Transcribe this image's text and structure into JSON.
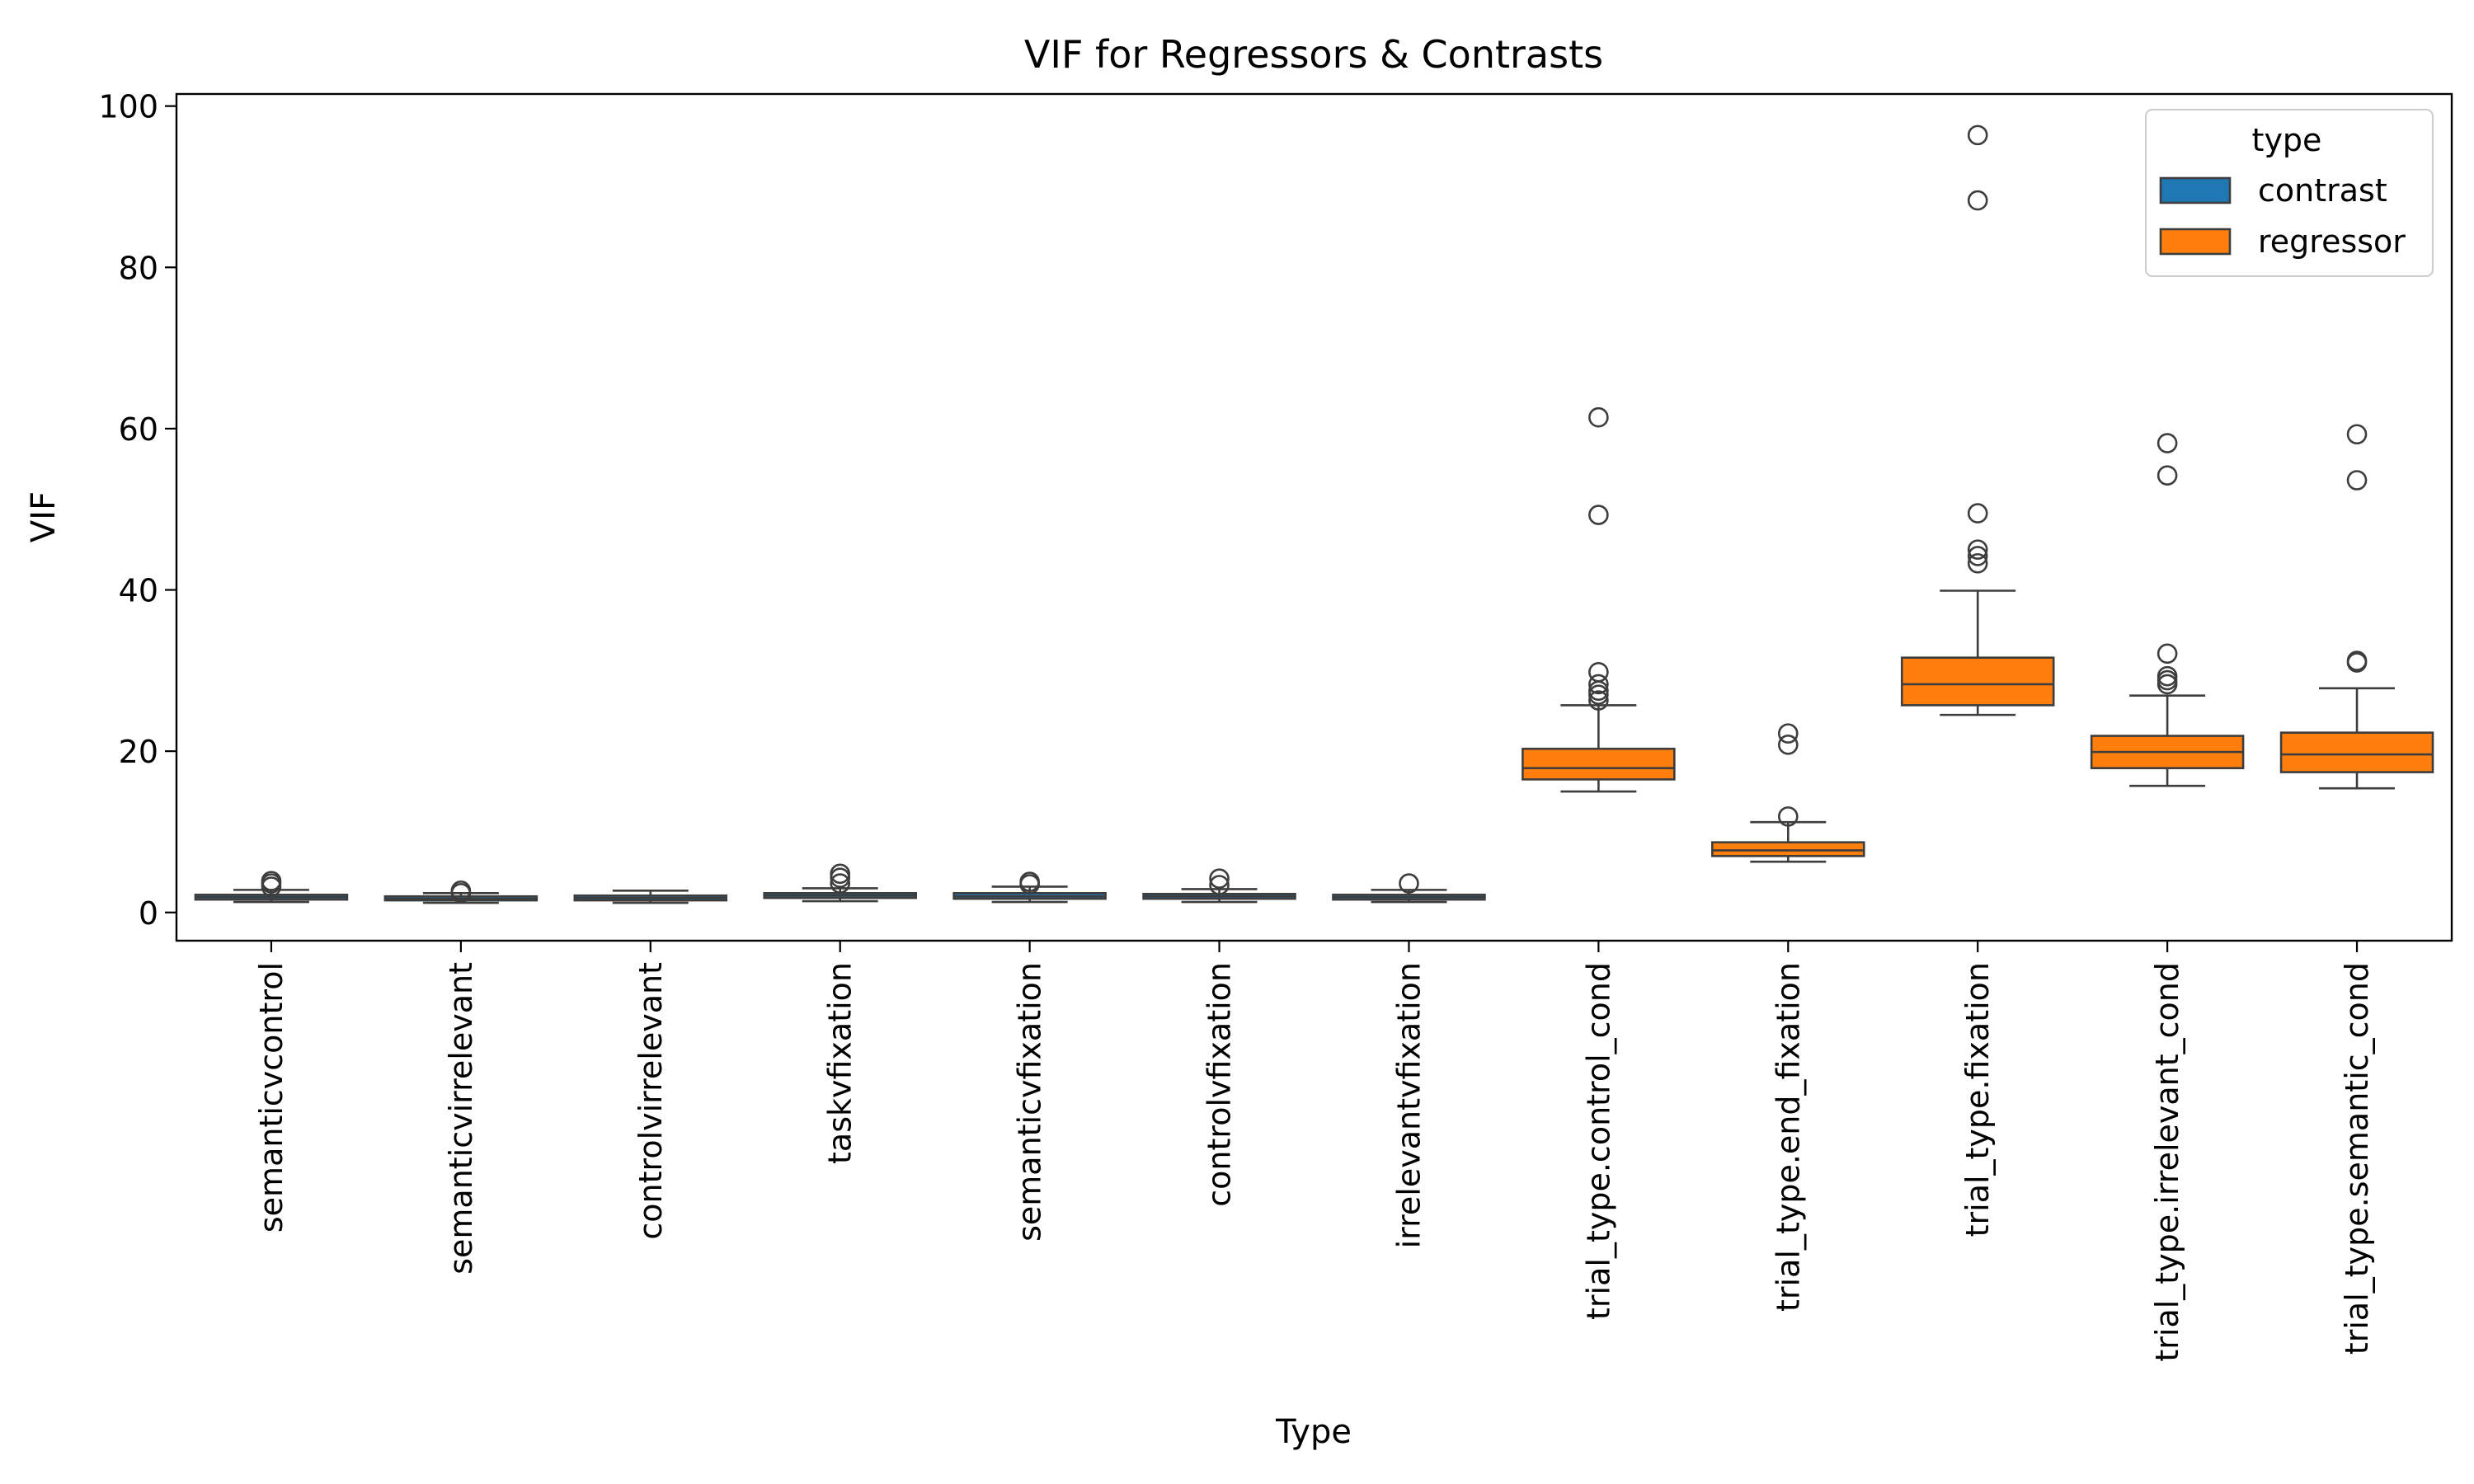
{
  "chart_data": {
    "type": "box",
    "title": "VIF for Regressors & Contrasts",
    "xlabel": "Type",
    "ylabel": "VIF",
    "ylim": [
      -3.5,
      101.5
    ],
    "yticks": [
      0,
      20,
      40,
      60,
      80,
      100
    ],
    "grid": false,
    "legend": {
      "title": "type",
      "placement": "top-right",
      "entries": [
        {
          "label": "contrast",
          "color": "#1f77b4"
        },
        {
          "label": "regressor",
          "color": "#ff7f0e"
        }
      ]
    },
    "categories": [
      {
        "label": "semanticvcontrol",
        "type": "contrast",
        "whislo": 1.3,
        "q1": 1.6,
        "median": 1.9,
        "q3": 2.2,
        "whishi": 2.8,
        "outliers": [
          3.2,
          3.6,
          3.9
        ]
      },
      {
        "label": "semanticvirrelevant",
        "type": "contrast",
        "whislo": 1.2,
        "q1": 1.5,
        "median": 1.7,
        "q3": 2.0,
        "whishi": 2.4,
        "outliers": [
          2.4,
          2.7
        ]
      },
      {
        "label": "controlvirrelevant",
        "type": "contrast",
        "whislo": 1.2,
        "q1": 1.5,
        "median": 1.8,
        "q3": 2.1,
        "whishi": 2.7,
        "outliers": []
      },
      {
        "label": "taskvfixation",
        "type": "contrast",
        "whislo": 1.4,
        "q1": 1.8,
        "median": 2.1,
        "q3": 2.4,
        "whishi": 3.0,
        "outliers": [
          3.6,
          4.3,
          4.8
        ]
      },
      {
        "label": "semanticvfixation",
        "type": "contrast",
        "whislo": 1.3,
        "q1": 1.7,
        "median": 2.0,
        "q3": 2.4,
        "whishi": 3.2,
        "outliers": [
          3.5,
          3.8
        ]
      },
      {
        "label": "controlvfixation",
        "type": "contrast",
        "whislo": 1.3,
        "q1": 1.7,
        "median": 2.0,
        "q3": 2.3,
        "whishi": 2.9,
        "outliers": [
          3.4,
          4.2
        ]
      },
      {
        "label": "irrelevantvfixation",
        "type": "contrast",
        "whislo": 1.3,
        "q1": 1.6,
        "median": 1.9,
        "q3": 2.2,
        "whishi": 2.8,
        "outliers": [
          3.6
        ]
      },
      {
        "label": "trial_type.control_cond",
        "type": "regressor",
        "whislo": 15.0,
        "q1": 16.5,
        "median": 17.9,
        "q3": 20.3,
        "whishi": 25.7,
        "outliers": [
          26.3,
          27.0,
          27.5,
          28.3,
          29.8,
          49.3,
          61.4
        ]
      },
      {
        "label": "trial_type.end_fixation",
        "type": "regressor",
        "whislo": 6.3,
        "q1": 7.0,
        "median": 7.7,
        "q3": 8.7,
        "whishi": 11.2,
        "outliers": [
          11.9,
          20.8,
          22.2
        ]
      },
      {
        "label": "trial_type.fixation",
        "type": "regressor",
        "whislo": 24.5,
        "q1": 25.7,
        "median": 28.3,
        "q3": 31.6,
        "whishi": 39.9,
        "outliers": [
          43.3,
          44.2,
          45.0,
          49.5,
          88.3,
          96.4
        ]
      },
      {
        "label": "trial_type.irrelevant_cond",
        "type": "regressor",
        "whislo": 15.7,
        "q1": 17.9,
        "median": 19.9,
        "q3": 21.9,
        "whishi": 26.9,
        "outliers": [
          28.3,
          28.8,
          29.3,
          32.1,
          54.2,
          58.2
        ]
      },
      {
        "label": "trial_type.semantic_cond",
        "type": "regressor",
        "whislo": 15.4,
        "q1": 17.4,
        "median": 19.6,
        "q3": 22.3,
        "whishi": 27.8,
        "outliers": [
          31.0,
          31.2,
          53.6,
          59.3
        ]
      }
    ]
  }
}
